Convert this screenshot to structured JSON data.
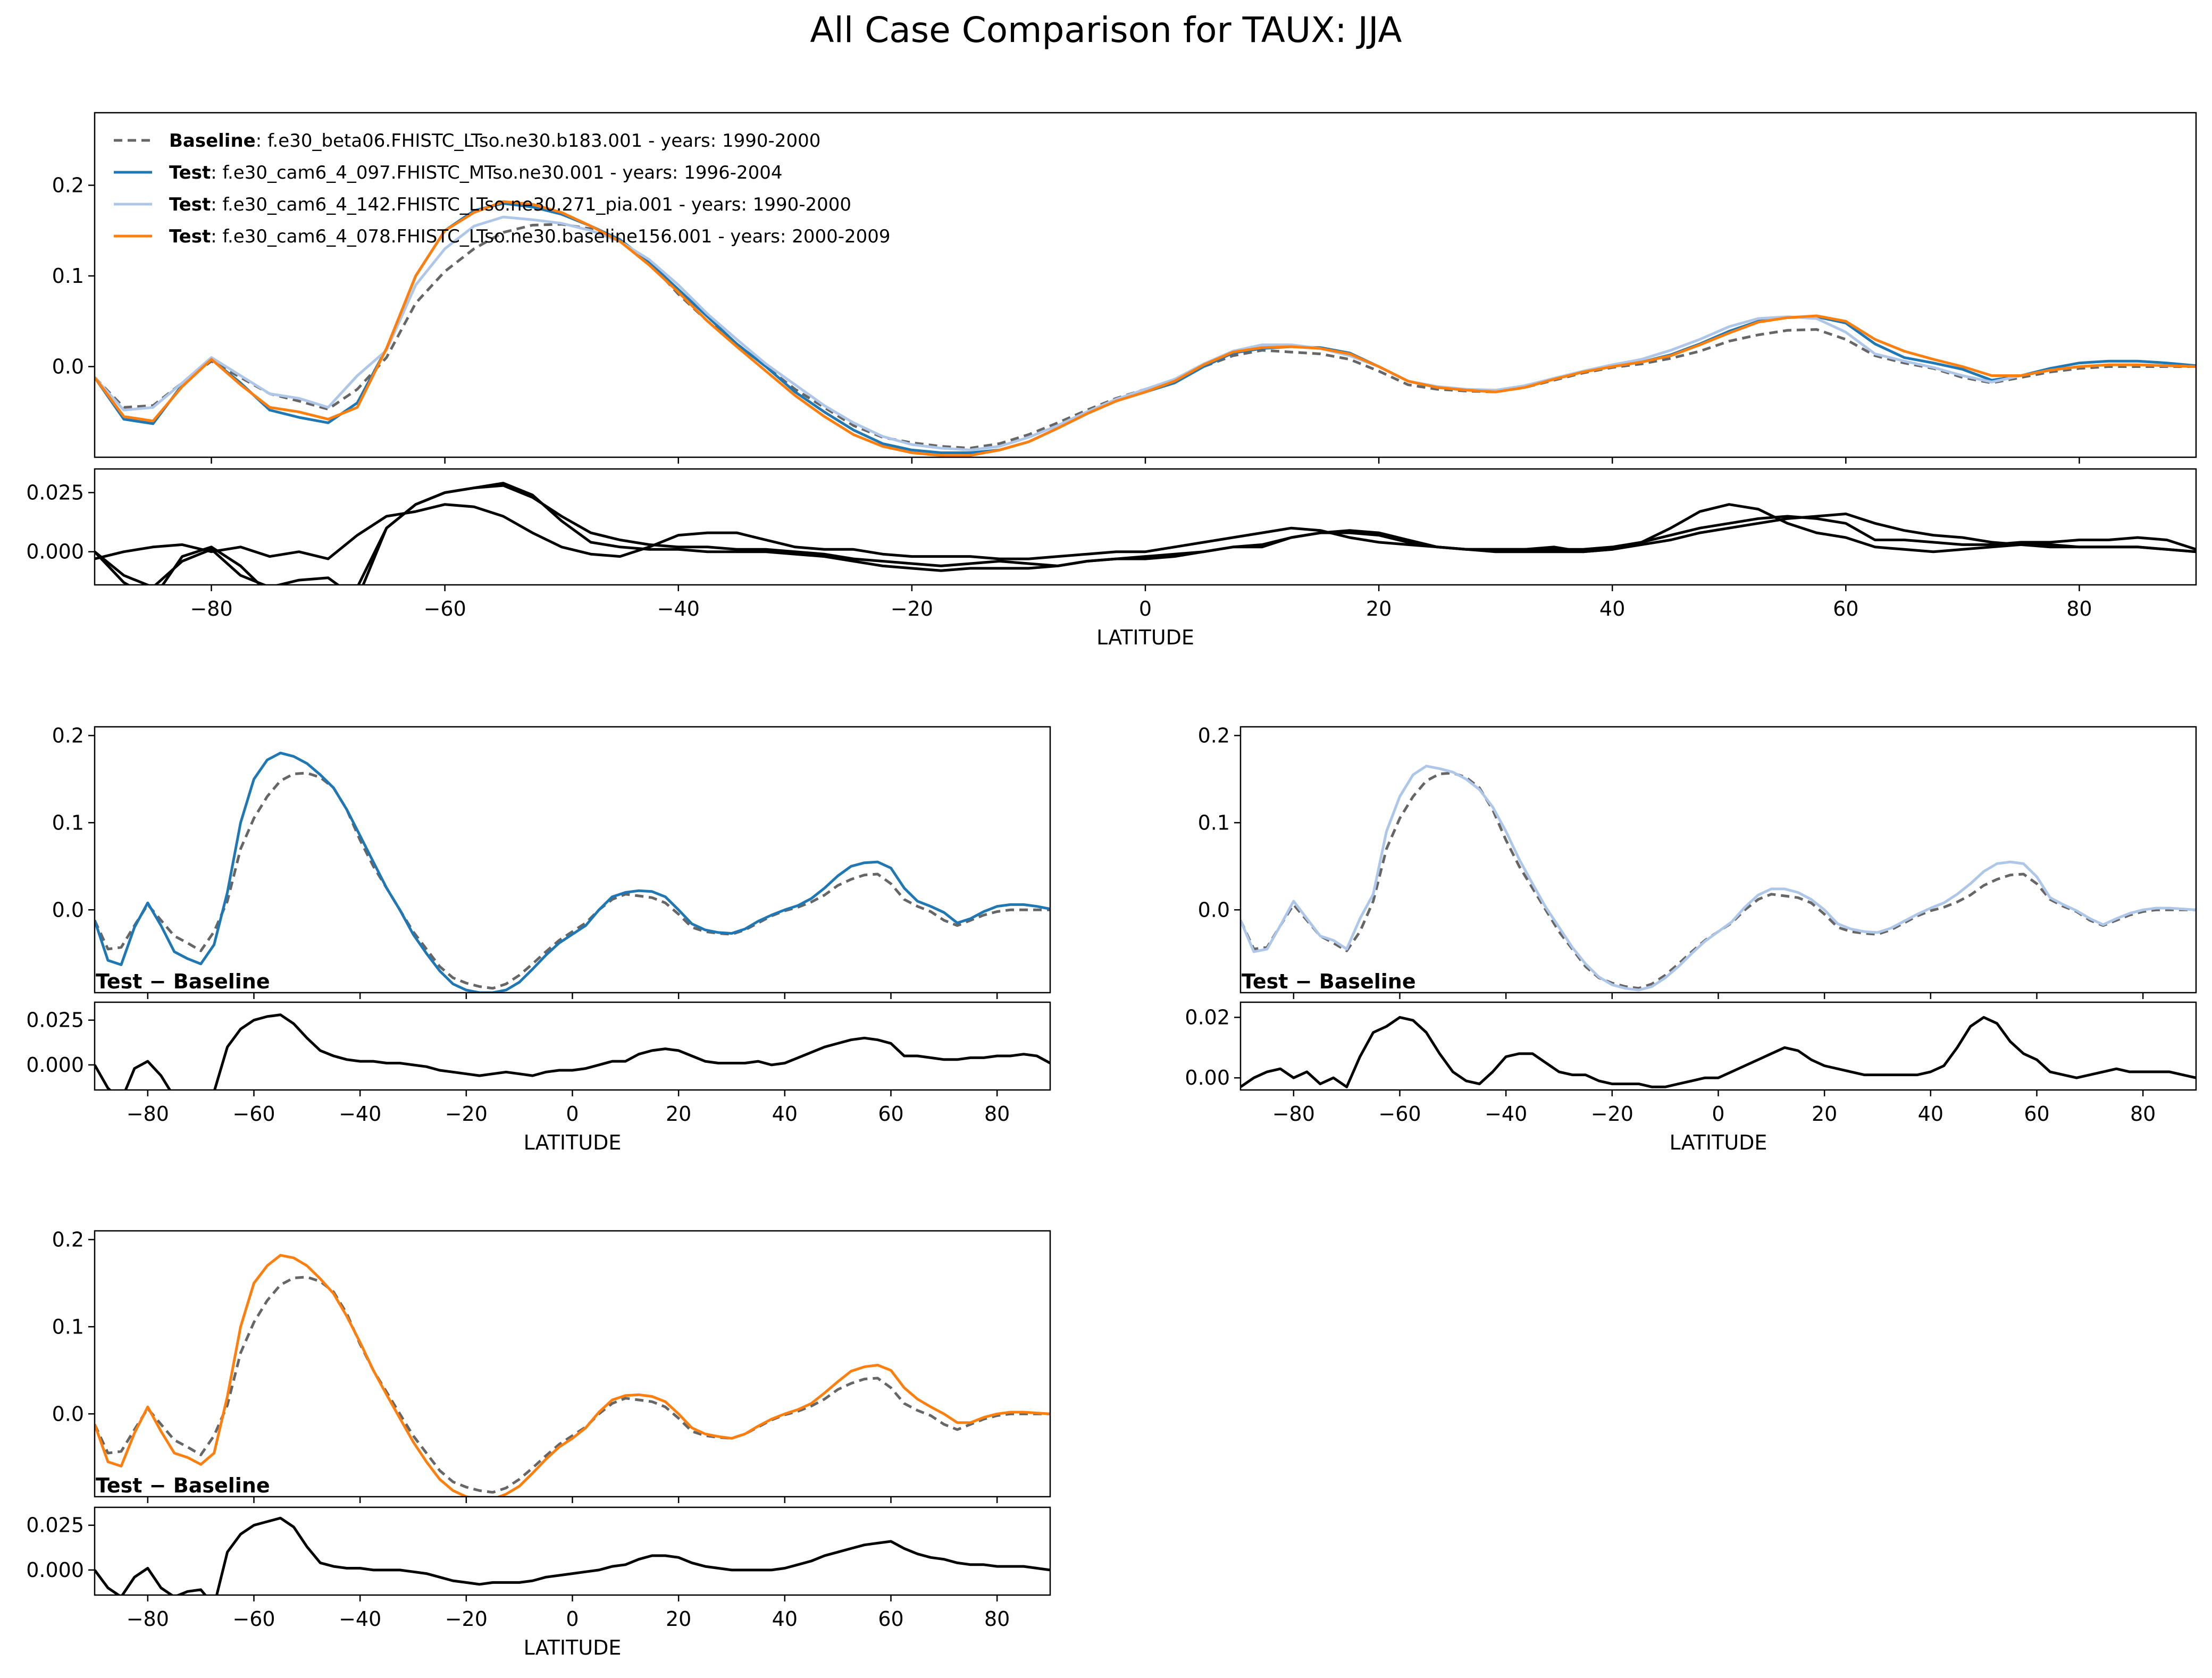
{
  "figure": {
    "title": "All Case Comparison for TAUX: JJA"
  },
  "colors": {
    "baseline": "#666666",
    "test1": "#1f77b4",
    "test2": "#aec7e8",
    "test3": "#ff7f0e",
    "diff": "#000000"
  },
  "legend": {
    "entries": [
      {
        "bold": "Baseline",
        "text": ": f.e30_beta06.FHISTC_LTso.ne30.b183.001 - years: 1990-2000",
        "series": "baseline"
      },
      {
        "bold": "Test",
        "text": ": f.e30_cam6_4_097.FHISTC_MTso.ne30.001 - years: 1996-2004",
        "series": "test1"
      },
      {
        "bold": "Test",
        "text": ": f.e30_cam6_4_142.FHISTC_LTso.ne30.271_pia.001 - years: 1990-2000",
        "series": "test2"
      },
      {
        "bold": "Test",
        "text": ": f.e30_cam6_4_078.FHISTC_LTso.ne30.baseline156.001 - years: 2000-2009",
        "series": "test3"
      }
    ]
  },
  "labels": {
    "xlabel": "LATITUDE",
    "diff_label": "Test − Baseline"
  },
  "chart_data": {
    "type": "line",
    "title": "All Case Comparison for TAUX: JJA",
    "xlabel": "LATITUDE",
    "xlim": [
      -90,
      90
    ],
    "xticks": [
      -80,
      -60,
      -40,
      -20,
      0,
      20,
      40,
      60,
      80
    ],
    "main_ylim": [
      -0.1,
      0.28
    ],
    "main_yticks": [
      0.0,
      0.1,
      0.2
    ],
    "panel_ylim": [
      -0.095,
      0.21
    ],
    "panel_yticks": [
      0.0,
      0.1,
      0.2
    ],
    "diff_ylim": [
      -0.014,
      0.035
    ],
    "diff_yticks": [
      0.0,
      0.025
    ],
    "diff2_ylim": [
      -0.004,
      0.025
    ],
    "diff2_yticks": [
      0.0,
      0.02
    ],
    "x": [
      -90,
      -87.5,
      -85,
      -82.5,
      -80,
      -77.5,
      -75,
      -72.5,
      -70,
      -67.5,
      -65,
      -62.5,
      -60,
      -57.5,
      -55,
      -52.5,
      -50,
      -47.5,
      -45,
      -42.5,
      -40,
      -37.5,
      -35,
      -32.5,
      -30,
      -27.5,
      -25,
      -22.5,
      -20,
      -17.5,
      -15,
      -12.5,
      -10,
      -7.5,
      -5,
      -2.5,
      0,
      2.5,
      5,
      7.5,
      10,
      12.5,
      15,
      17.5,
      20,
      22.5,
      25,
      27.5,
      30,
      32.5,
      35,
      37.5,
      40,
      42.5,
      45,
      47.5,
      50,
      52.5,
      55,
      57.5,
      60,
      62.5,
      65,
      67.5,
      70,
      72.5,
      75,
      77.5,
      80,
      82.5,
      85,
      87.5,
      90
    ],
    "series": [
      {
        "key": "baseline",
        "name": "Baseline",
        "style": "dashed",
        "values": [
          -0.012,
          -0.045,
          -0.043,
          -0.018,
          0.006,
          -0.012,
          -0.03,
          -0.038,
          -0.047,
          -0.025,
          0.01,
          0.07,
          0.105,
          0.13,
          0.148,
          0.156,
          0.157,
          0.152,
          0.14,
          0.115,
          0.08,
          0.05,
          0.025,
          0.0,
          -0.025,
          -0.045,
          -0.065,
          -0.078,
          -0.084,
          -0.088,
          -0.09,
          -0.085,
          -0.075,
          -0.062,
          -0.048,
          -0.035,
          -0.025,
          -0.015,
          0.0,
          0.012,
          0.018,
          0.016,
          0.014,
          0.008,
          -0.005,
          -0.02,
          -0.025,
          -0.027,
          -0.028,
          -0.023,
          -0.015,
          -0.007,
          -0.001,
          0.003,
          0.009,
          0.017,
          0.028,
          0.035,
          0.04,
          0.041,
          0.03,
          0.012,
          0.004,
          -0.002,
          -0.012,
          -0.018,
          -0.012,
          -0.006,
          -0.002,
          0.0,
          0.0,
          0.0,
          0.0
        ]
      },
      {
        "key": "test1",
        "name": "Test",
        "style": "solid",
        "values": [
          -0.012,
          -0.058,
          -0.063,
          -0.02,
          0.008,
          -0.018,
          -0.048,
          -0.056,
          -0.062,
          -0.04,
          0.02,
          0.1,
          0.15,
          0.172,
          0.18,
          0.176,
          0.168,
          0.155,
          0.14,
          0.115,
          0.085,
          0.055,
          0.025,
          0.0,
          -0.028,
          -0.05,
          -0.07,
          -0.085,
          -0.092,
          -0.095,
          -0.095,
          -0.092,
          -0.083,
          -0.068,
          -0.052,
          -0.038,
          -0.028,
          -0.018,
          0.0,
          0.015,
          0.02,
          0.022,
          0.021,
          0.015,
          0.0,
          -0.016,
          -0.023,
          -0.026,
          -0.027,
          -0.022,
          -0.013,
          -0.006,
          0.0,
          0.005,
          0.013,
          0.025,
          0.039,
          0.05,
          0.054,
          0.055,
          0.048,
          0.025,
          0.01,
          0.004,
          -0.003,
          -0.015,
          -0.01,
          -0.002,
          0.004,
          0.006,
          0.006,
          0.004,
          0.001
        ]
      },
      {
        "key": "test2",
        "name": "Test",
        "style": "solid",
        "values": [
          -0.012,
          -0.048,
          -0.045,
          -0.018,
          0.01,
          -0.01,
          -0.03,
          -0.035,
          -0.045,
          -0.01,
          0.018,
          0.09,
          0.13,
          0.155,
          0.165,
          0.162,
          0.158,
          0.15,
          0.138,
          0.118,
          0.09,
          0.058,
          0.03,
          0.003,
          -0.02,
          -0.043,
          -0.062,
          -0.077,
          -0.086,
          -0.09,
          -0.092,
          -0.088,
          -0.078,
          -0.065,
          -0.05,
          -0.036,
          -0.025,
          -0.014,
          0.003,
          0.017,
          0.024,
          0.024,
          0.02,
          0.012,
          0.0,
          -0.016,
          -0.022,
          -0.025,
          -0.026,
          -0.021,
          -0.013,
          -0.005,
          0.002,
          0.008,
          0.018,
          0.03,
          0.044,
          0.053,
          0.055,
          0.053,
          0.038,
          0.014,
          0.006,
          -0.001,
          -0.01,
          -0.017,
          -0.01,
          -0.004,
          0.0,
          0.002,
          0.002,
          0.001,
          0.0
        ]
      },
      {
        "key": "test3",
        "name": "Test",
        "style": "solid",
        "values": [
          -0.012,
          -0.055,
          -0.06,
          -0.022,
          0.008,
          -0.02,
          -0.045,
          -0.05,
          -0.058,
          -0.045,
          0.02,
          0.1,
          0.15,
          0.17,
          0.182,
          0.179,
          0.17,
          0.155,
          0.138,
          0.112,
          0.082,
          0.05,
          0.022,
          -0.005,
          -0.032,
          -0.055,
          -0.075,
          -0.088,
          -0.095,
          -0.098,
          -0.098,
          -0.092,
          -0.083,
          -0.068,
          -0.052,
          -0.038,
          -0.028,
          -0.016,
          0.002,
          0.016,
          0.021,
          0.022,
          0.02,
          0.014,
          0.0,
          -0.016,
          -0.023,
          -0.026,
          -0.028,
          -0.023,
          -0.014,
          -0.006,
          0.0,
          0.005,
          0.012,
          0.024,
          0.037,
          0.049,
          0.054,
          0.056,
          0.05,
          0.03,
          0.017,
          0.008,
          0.0,
          -0.01,
          -0.01,
          -0.004,
          0.0,
          0.002,
          0.002,
          0.001,
          0.0
        ]
      },
      {
        "key": "diff1",
        "name": "Test − Baseline",
        "style": "solid",
        "values": [
          0.0,
          -0.013,
          -0.02,
          -0.002,
          0.002,
          -0.006,
          -0.018,
          -0.018,
          -0.015,
          -0.015,
          0.01,
          0.02,
          0.025,
          0.027,
          0.028,
          0.023,
          0.015,
          0.008,
          0.005,
          0.003,
          0.002,
          0.002,
          0.001,
          0.001,
          0.0,
          -0.001,
          -0.003,
          -0.004,
          -0.005,
          -0.006,
          -0.005,
          -0.004,
          -0.005,
          -0.006,
          -0.004,
          -0.003,
          -0.003,
          -0.002,
          0.0,
          0.002,
          0.002,
          0.006,
          0.008,
          0.009,
          0.008,
          0.005,
          0.002,
          0.001,
          0.001,
          0.001,
          0.002,
          0.0,
          0.001,
          0.004,
          0.007,
          0.01,
          0.012,
          0.014,
          0.015,
          0.014,
          0.012,
          0.005,
          0.005,
          0.004,
          0.003,
          0.003,
          0.004,
          0.004,
          0.005,
          0.005,
          0.006,
          0.005,
          0.001
        ]
      },
      {
        "key": "diff2",
        "name": "Test − Baseline",
        "style": "solid",
        "values": [
          -0.003,
          0.0,
          0.002,
          0.003,
          0.0,
          0.002,
          -0.002,
          0.0,
          -0.003,
          0.007,
          0.015,
          0.017,
          0.02,
          0.019,
          0.015,
          0.008,
          0.002,
          -0.001,
          -0.002,
          0.002,
          0.007,
          0.008,
          0.008,
          0.005,
          0.002,
          0.001,
          0.001,
          -0.001,
          -0.002,
          -0.002,
          -0.002,
          -0.003,
          -0.003,
          -0.002,
          -0.001,
          0.0,
          0.0,
          0.002,
          0.004,
          0.006,
          0.008,
          0.01,
          0.009,
          0.006,
          0.004,
          0.003,
          0.002,
          0.001,
          0.001,
          0.001,
          0.001,
          0.001,
          0.002,
          0.004,
          0.01,
          0.017,
          0.02,
          0.018,
          0.012,
          0.008,
          0.006,
          0.002,
          0.001,
          0.0,
          0.001,
          0.002,
          0.003,
          0.002,
          0.002,
          0.002,
          0.002,
          0.001,
          0.0
        ]
      },
      {
        "key": "diff3",
        "name": "Test − Baseline",
        "style": "solid",
        "values": [
          0.0,
          -0.01,
          -0.015,
          -0.004,
          0.001,
          -0.01,
          -0.015,
          -0.012,
          -0.011,
          -0.02,
          0.01,
          0.02,
          0.025,
          0.027,
          0.029,
          0.024,
          0.013,
          0.004,
          0.002,
          0.001,
          0.001,
          0.0,
          0.0,
          0.0,
          -0.001,
          -0.002,
          -0.004,
          -0.006,
          -0.007,
          -0.008,
          -0.007,
          -0.007,
          -0.007,
          -0.006,
          -0.004,
          -0.003,
          -0.002,
          -0.001,
          0.0,
          0.002,
          0.003,
          0.006,
          0.008,
          0.008,
          0.007,
          0.004,
          0.002,
          0.001,
          0.0,
          0.0,
          0.0,
          0.0,
          0.001,
          0.003,
          0.005,
          0.008,
          0.01,
          0.012,
          0.014,
          0.015,
          0.016,
          0.012,
          0.009,
          0.007,
          0.006,
          0.004,
          0.003,
          0.003,
          0.002,
          0.002,
          0.002,
          0.001,
          0.0
        ]
      }
    ],
    "panels": [
      {
        "main": [
          "baseline",
          "test1",
          "test2",
          "test3"
        ],
        "diff": [
          "diff1",
          "diff2",
          "diff3"
        ],
        "legend": true
      },
      {
        "main": [
          "baseline",
          "test1"
        ],
        "diff": [
          "diff1"
        ],
        "legend": false
      },
      {
        "main": [
          "baseline",
          "test2"
        ],
        "diff": [
          "diff2"
        ],
        "legend": false
      },
      {
        "main": [
          "baseline",
          "test3"
        ],
        "diff": [
          "diff3"
        ],
        "legend": false
      }
    ]
  }
}
